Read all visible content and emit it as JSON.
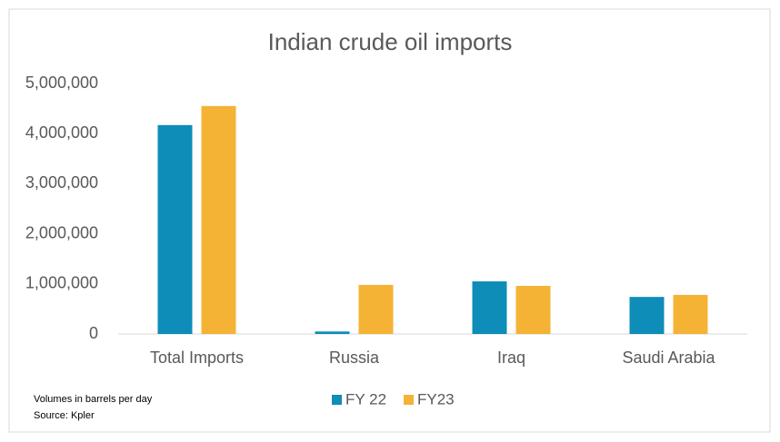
{
  "chart_data": {
    "type": "bar",
    "title": "Indian crude oil imports",
    "categories": [
      "Total Imports",
      "Russia",
      "Iraq",
      "Saudi Arabia"
    ],
    "series": [
      {
        "name": "FY 22",
        "color": "#0e8db8",
        "values": [
          4170000,
          50000,
          1050000,
          740000
        ]
      },
      {
        "name": "FY23",
        "color": "#f5b335",
        "values": [
          4550000,
          980000,
          960000,
          780000
        ]
      }
    ],
    "ylim": [
      0,
      5000000
    ],
    "yticks": [
      0,
      {
        "value": 1000000,
        "label": "1,000,000"
      },
      {
        "value": 2000000,
        "label": "2,000,000"
      },
      {
        "value": 3000000,
        "label": "3,000,000"
      },
      {
        "value": 4000000,
        "label": "4,000,000"
      },
      {
        "value": 5000000,
        "label": "5,000,000"
      }
    ],
    "grid": false,
    "legend": "bottom",
    "notes": [
      "Volumes in barrels per day",
      "Source: Kpler"
    ]
  }
}
